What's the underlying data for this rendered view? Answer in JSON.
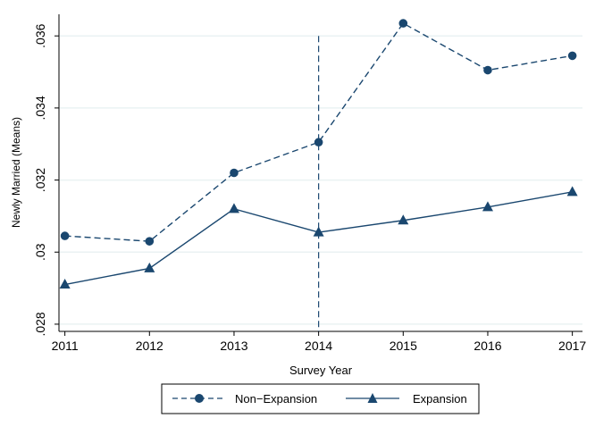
{
  "chart_data": {
    "type": "line",
    "xlabel": "Survey Year",
    "ylabel": "Newly Married (Means)",
    "x": [
      2011,
      2012,
      2013,
      2014,
      2015,
      2016,
      2017
    ],
    "xlim": [
      2010.93,
      2017.12
    ],
    "ylim": [
      0.0278,
      0.0366
    ],
    "yticks": [
      0.028,
      0.03,
      0.032,
      0.034,
      0.036
    ],
    "ytick_labels": [
      ".028",
      ".03",
      ".032",
      ".034",
      ".036"
    ],
    "xtick_labels": [
      "2011",
      "2012",
      "2013",
      "2014",
      "2015",
      "2016",
      "2017"
    ],
    "vline": {
      "x": 2014,
      "ymin": 0.0278,
      "ymax": 0.036,
      "style": "dashed"
    },
    "grid": true,
    "legend_position": "bottom",
    "series": [
      {
        "name": "Non−Expansion",
        "marker": "circle",
        "line_style": "dashed",
        "color": "#1a476f",
        "values": [
          0.03045,
          0.0303,
          0.0322,
          0.03305,
          0.03635,
          0.03505,
          0.03545
        ]
      },
      {
        "name": "Expansion",
        "marker": "triangle",
        "line_style": "solid",
        "color": "#1a476f",
        "values": [
          0.0291,
          0.02955,
          0.0312,
          0.03055,
          0.03088,
          0.03125,
          0.03167
        ]
      }
    ]
  }
}
